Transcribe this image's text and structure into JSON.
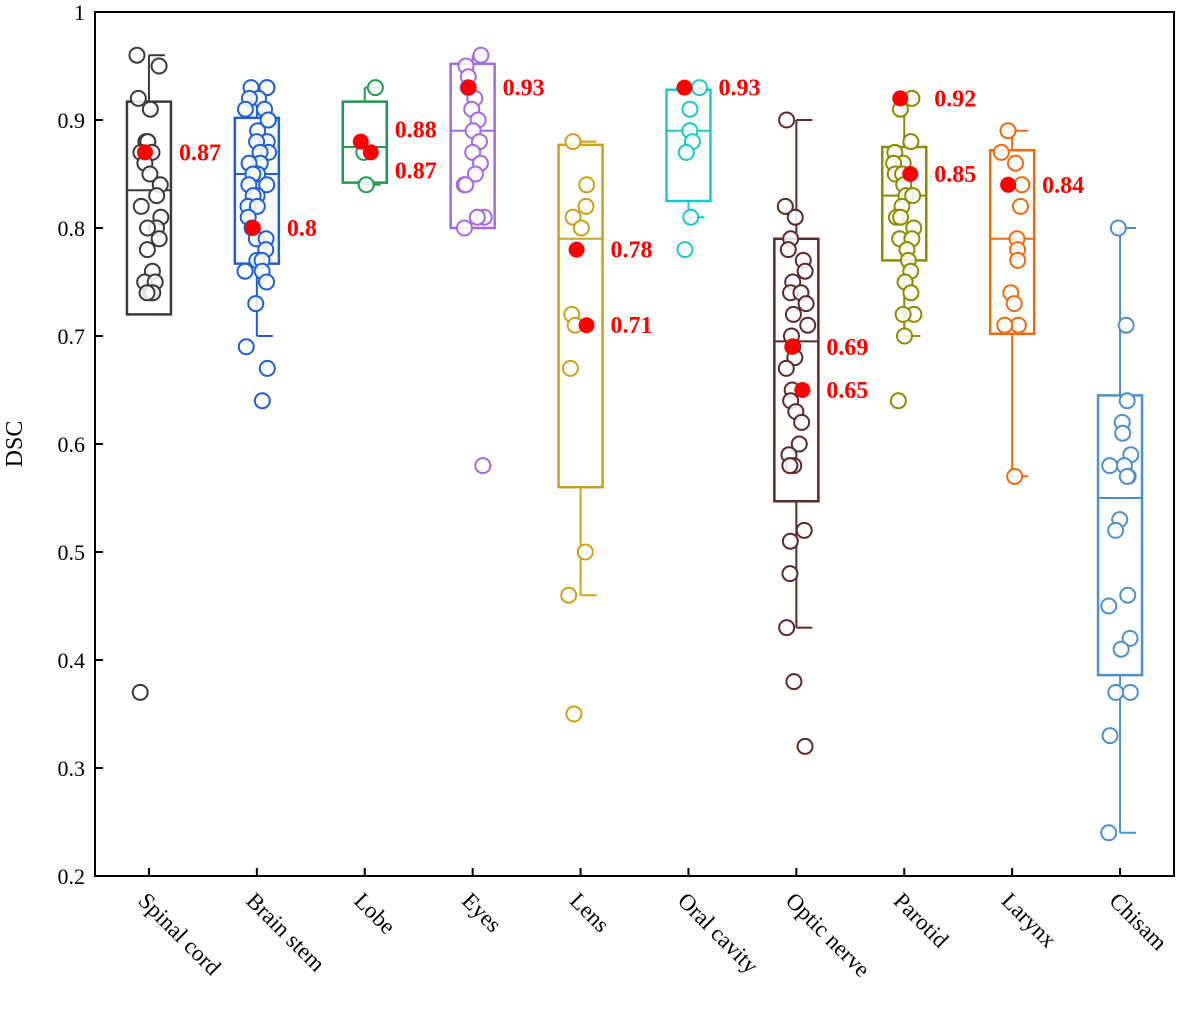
{
  "chart_data": {
    "type": "box",
    "ylabel": "DSC",
    "xlabel": "",
    "ylim": [
      0.2,
      1.0
    ],
    "yticks": [
      "0.2",
      "0.3",
      "0.4",
      "0.5",
      "0.6",
      "0.7",
      "0.8",
      "0.9",
      "1"
    ],
    "highlight_color": "#ff0000",
    "series": [
      {
        "name": "Spinal cord",
        "color": "#3a3a3a",
        "box": {
          "whisker_low": 0.72,
          "q1": 0.72,
          "median": 0.835,
          "q3": 0.917,
          "whisker_high": 0.96
        },
        "points": [
          0.96,
          0.95,
          0.92,
          0.91,
          0.88,
          0.88,
          0.87,
          0.87,
          0.86,
          0.85,
          0.84,
          0.83,
          0.82,
          0.81,
          0.8,
          0.8,
          0.79,
          0.78,
          0.76,
          0.75,
          0.75,
          0.74,
          0.74,
          0.74,
          0.37
        ],
        "highlights": [
          {
            "value": 0.87,
            "label": "0.87"
          }
        ]
      },
      {
        "name": "Brain stem",
        "color": "#1f5fd1",
        "box": {
          "whisker_low": 0.7,
          "q1": 0.767,
          "median": 0.85,
          "q3": 0.902,
          "whisker_high": 0.93
        },
        "points": [
          0.93,
          0.93,
          0.93,
          0.92,
          0.92,
          0.91,
          0.91,
          0.9,
          0.9,
          0.89,
          0.88,
          0.88,
          0.87,
          0.87,
          0.86,
          0.86,
          0.85,
          0.85,
          0.84,
          0.84,
          0.83,
          0.83,
          0.82,
          0.82,
          0.81,
          0.8,
          0.79,
          0.79,
          0.78,
          0.77,
          0.77,
          0.76,
          0.76,
          0.75,
          0.73,
          0.69,
          0.67,
          0.64
        ],
        "highlights": [
          {
            "value": 0.8,
            "label": "0.8"
          }
        ]
      },
      {
        "name": "Lobe",
        "color": "#1f9a55",
        "box": {
          "whisker_low": 0.84,
          "q1": 0.842,
          "median": 0.875,
          "q3": 0.917,
          "whisker_high": 0.93
        },
        "points": [
          0.93,
          0.87,
          0.84
        ],
        "highlights": [
          {
            "value": 0.88,
            "label": "0.88"
          },
          {
            "value": 0.87,
            "label": "0.87"
          }
        ]
      },
      {
        "name": "Eyes",
        "color": "#a56ae0",
        "box": {
          "whisker_low": 0.8,
          "q1": 0.8,
          "median": 0.89,
          "q3": 0.952,
          "whisker_high": 0.96
        },
        "points": [
          0.96,
          0.95,
          0.94,
          0.93,
          0.92,
          0.91,
          0.9,
          0.89,
          0.88,
          0.87,
          0.86,
          0.85,
          0.84,
          0.84,
          0.81,
          0.81,
          0.8,
          0.58
        ],
        "highlights": [
          {
            "value": 0.93,
            "label": "0.93"
          }
        ]
      },
      {
        "name": "Lens",
        "color": "#c9a11b",
        "box": {
          "whisker_low": 0.46,
          "q1": 0.56,
          "median": 0.79,
          "q3": 0.877,
          "whisker_high": 0.88
        },
        "points": [
          0.88,
          0.84,
          0.82,
          0.81,
          0.8,
          0.72,
          0.71,
          0.67,
          0.5,
          0.46,
          0.35
        ],
        "highlights": [
          {
            "value": 0.78,
            "label": "0.78"
          },
          {
            "value": 0.71,
            "label": "0.71"
          }
        ]
      },
      {
        "name": "Oral cavity",
        "color": "#1fc8c8",
        "box": {
          "whisker_low": 0.81,
          "q1": 0.825,
          "median": 0.89,
          "q3": 0.928,
          "whisker_high": 0.93
        },
        "points": [
          0.93,
          0.91,
          0.89,
          0.88,
          0.87,
          0.81,
          0.78
        ],
        "highlights": [
          {
            "value": 0.93,
            "label": "0.93"
          }
        ]
      },
      {
        "name": "Optic nerve",
        "color": "#5b2a2a",
        "box": {
          "whisker_low": 0.43,
          "q1": 0.547,
          "median": 0.695,
          "q3": 0.79,
          "whisker_high": 0.9
        },
        "points": [
          0.9,
          0.82,
          0.81,
          0.79,
          0.78,
          0.77,
          0.76,
          0.75,
          0.74,
          0.74,
          0.73,
          0.72,
          0.71,
          0.7,
          0.69,
          0.68,
          0.67,
          0.65,
          0.64,
          0.63,
          0.62,
          0.6,
          0.59,
          0.58,
          0.58,
          0.52,
          0.51,
          0.48,
          0.43,
          0.38,
          0.32
        ],
        "highlights": [
          {
            "value": 0.69,
            "label": "0.69"
          },
          {
            "value": 0.65,
            "label": "0.65"
          }
        ]
      },
      {
        "name": "Parotid",
        "color": "#8b8b00",
        "box": {
          "whisker_low": 0.7,
          "q1": 0.77,
          "median": 0.83,
          "q3": 0.875,
          "whisker_high": 0.92
        },
        "points": [
          0.92,
          0.91,
          0.88,
          0.87,
          0.86,
          0.86,
          0.85,
          0.85,
          0.84,
          0.83,
          0.83,
          0.82,
          0.81,
          0.81,
          0.8,
          0.79,
          0.79,
          0.78,
          0.77,
          0.76,
          0.75,
          0.74,
          0.72,
          0.72,
          0.7,
          0.64
        ],
        "highlights": [
          {
            "value": 0.92,
            "label": "0.92"
          },
          {
            "value": 0.85,
            "label": "0.85"
          }
        ]
      },
      {
        "name": "Larynx",
        "color": "#f06a10",
        "box": {
          "whisker_low": 0.57,
          "q1": 0.702,
          "median": 0.79,
          "q3": 0.872,
          "whisker_high": 0.89
        },
        "points": [
          0.89,
          0.87,
          0.86,
          0.84,
          0.82,
          0.79,
          0.78,
          0.77,
          0.74,
          0.73,
          0.71,
          0.71,
          0.57
        ],
        "highlights": [
          {
            "value": 0.84,
            "label": "0.84"
          }
        ]
      },
      {
        "name": "Chisam",
        "color": "#4f90c8",
        "box": {
          "whisker_low": 0.24,
          "q1": 0.386,
          "median": 0.55,
          "q3": 0.645,
          "whisker_high": 0.8
        },
        "points": [
          0.8,
          0.71,
          0.64,
          0.62,
          0.61,
          0.59,
          0.58,
          0.58,
          0.57,
          0.57,
          0.53,
          0.52,
          0.46,
          0.45,
          0.42,
          0.41,
          0.37,
          0.37,
          0.33,
          0.24
        ],
        "highlights": []
      }
    ]
  }
}
